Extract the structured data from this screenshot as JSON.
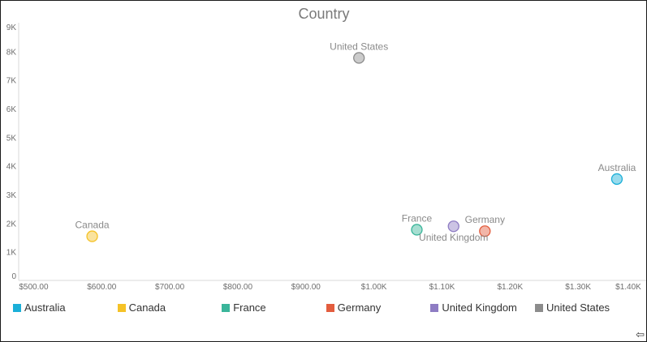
{
  "chart_data": {
    "type": "scatter",
    "title": "Country",
    "xlabel": "",
    "ylabel": "",
    "xlim": [
      478,
      1400
    ],
    "ylim": [
      0,
      9000
    ],
    "x_ticks": [
      {
        "value": 500,
        "label": "$500.00"
      },
      {
        "value": 600,
        "label": "$600.00"
      },
      {
        "value": 700,
        "label": "$700.00"
      },
      {
        "value": 800,
        "label": "$800.00"
      },
      {
        "value": 900,
        "label": "$900.00"
      },
      {
        "value": 1000,
        "label": "$1.00K"
      },
      {
        "value": 1100,
        "label": "$1.10K"
      },
      {
        "value": 1200,
        "label": "$1.20K"
      },
      {
        "value": 1300,
        "label": "$1.30K"
      },
      {
        "value": 1400,
        "label": "$1.40K"
      }
    ],
    "y_ticks": [
      {
        "value": 0,
        "label": "0"
      },
      {
        "value": 1000,
        "label": "1K"
      },
      {
        "value": 2000,
        "label": "2K"
      },
      {
        "value": 3000,
        "label": "3K"
      },
      {
        "value": 4000,
        "label": "4K"
      },
      {
        "value": 5000,
        "label": "5K"
      },
      {
        "value": 6000,
        "label": "6K"
      },
      {
        "value": 7000,
        "label": "7K"
      },
      {
        "value": 8000,
        "label": "8K"
      },
      {
        "value": 9000,
        "label": "9K"
      }
    ],
    "series": [
      {
        "name": "Australia",
        "x": 1357,
        "y": 3540,
        "color": "#1BAFD8",
        "label_position": "above"
      },
      {
        "name": "Canada",
        "x": 586,
        "y": 1540,
        "color": "#F5C227",
        "label_position": "above"
      },
      {
        "name": "France",
        "x": 1063,
        "y": 1770,
        "color": "#3AB59A",
        "label_position": "above"
      },
      {
        "name": "Germany",
        "x": 1163,
        "y": 1720,
        "color": "#E35D3E",
        "label_position": "above"
      },
      {
        "name": "United Kingdom",
        "x": 1117,
        "y": 1890,
        "color": "#8E7CC3",
        "label_position": "below"
      },
      {
        "name": "United States",
        "x": 978,
        "y": 7770,
        "color": "#8C8C8C",
        "label_position": "above"
      }
    ],
    "legend": "bottom",
    "grid": false
  },
  "icons": {
    "corner": "arrow-left-icon"
  }
}
